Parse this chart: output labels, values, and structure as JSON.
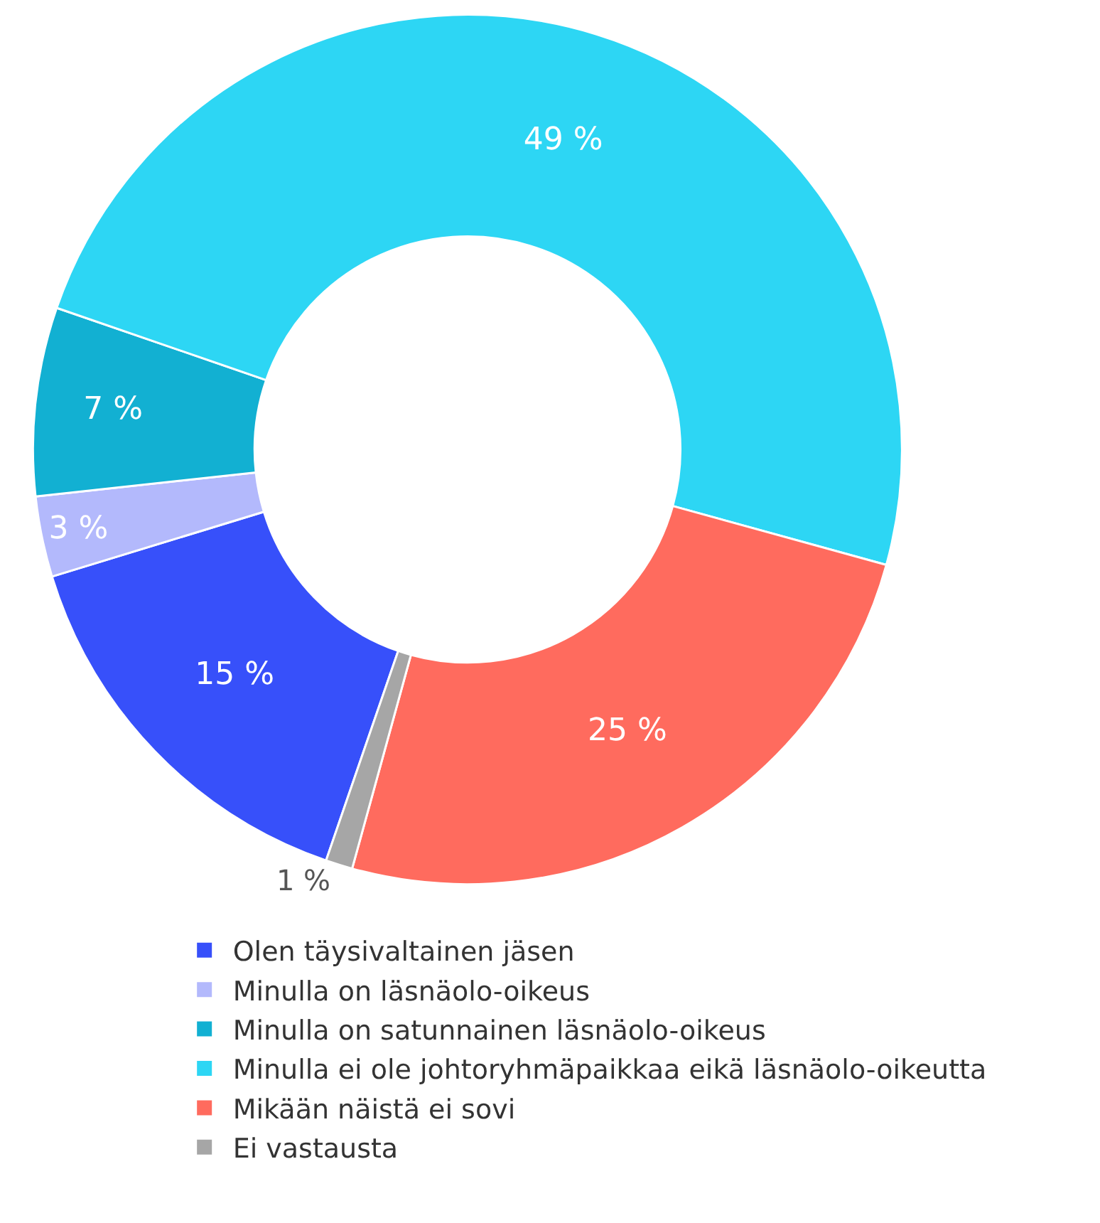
{
  "chart_data": {
    "type": "donut",
    "categories": [
      "Olen täysivaltainen jäsen",
      "Minulla on läsnäolo-oikeus",
      "Minulla on satunnainen läsnäolo-oikeus",
      "Minulla ei ole johtoryhmäpaikkaa eikä läsnäolo-oikeutta",
      "Mikään näistä ei sovi",
      "Ei vastausta"
    ],
    "values": [
      15,
      3,
      7,
      49,
      25,
      1
    ],
    "value_labels": [
      "15 %",
      "3 %",
      "7 %",
      "49 %",
      "25 %",
      "1 %"
    ],
    "colors": [
      "#3750fa",
      "#b3b9fc",
      "#12b0d2",
      "#2dd6f4",
      "#ff6b5e",
      "#a6a6a6"
    ],
    "legend": "bottom"
  }
}
